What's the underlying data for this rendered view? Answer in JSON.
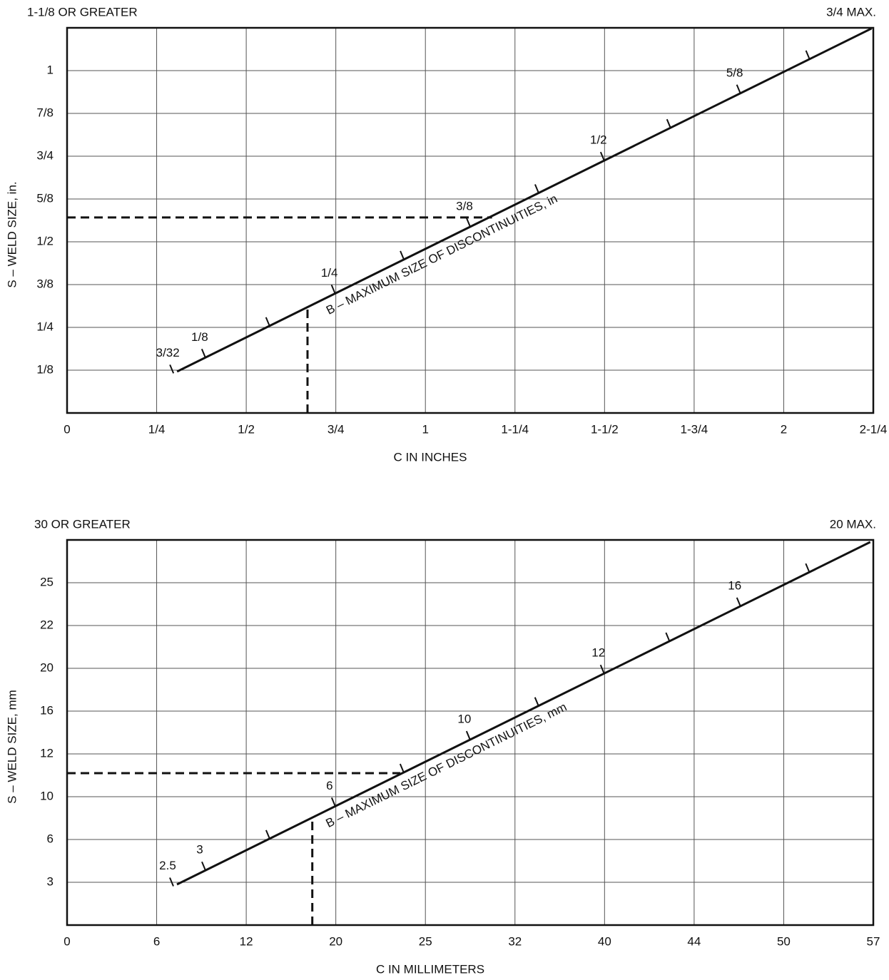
{
  "chart_data": [
    {
      "type": "line",
      "scale": "even-ticks",
      "top_left_note": "1-1/8 OR GREATER",
      "top_right_note": "3/4 MAX.",
      "xlabel": "C IN INCHES",
      "ylabel": "S – WELD SIZE, in.",
      "xlim": [
        0,
        2.25
      ],
      "xticks": [
        0,
        {
          "value": 0.25,
          "label": "1/4"
        },
        {
          "value": 0.5,
          "label": "1/2"
        },
        {
          "value": 0.75,
          "label": "3/4"
        },
        1,
        {
          "value": 1.25,
          "label": "1-1/4"
        },
        {
          "value": 1.5,
          "label": "1-1/2"
        },
        {
          "value": 1.75,
          "label": "1-3/4"
        },
        2,
        {
          "value": 2.25,
          "label": "2-1/4"
        }
      ],
      "ylim": [
        0,
        1.125
      ],
      "yticks": [
        {
          "value": 0.125,
          "label": "1/8"
        },
        {
          "value": 0.25,
          "label": "1/4"
        },
        {
          "value": 0.375,
          "label": "3/8"
        },
        {
          "value": 0.5,
          "label": "1/2"
        },
        {
          "value": 0.625,
          "label": "5/8"
        },
        {
          "value": 0.75,
          "label": "3/4"
        },
        {
          "value": 0.875,
          "label": "7/8"
        },
        1
      ],
      "grid": true,
      "x": [
        0.307,
        2.245
      ],
      "series": [
        {
          "name": "B – MAXIMUM SIZE OF DISCONTINUITIES, in",
          "color": "#111111",
          "values": [
            0.121,
            1.123
          ]
        }
      ],
      "b_ticks": {
        "x": [
          0.297,
          0.386,
          0.565,
          0.748,
          0.94,
          1.125,
          1.316,
          1.499,
          1.684,
          1.879,
          2.072
        ],
        "labels": [
          "3/32",
          "1/8",
          null,
          "1/4",
          null,
          "3/8",
          null,
          "1/2",
          null,
          "5/8",
          null
        ]
      },
      "vertical_guide": {
        "x": 0.671,
        "y": 0.315
      },
      "horizontal_guide": {
        "x": 1.186,
        "y": 0.571
      }
    },
    {
      "type": "line",
      "scale": "even-ticks",
      "top_left_note": "30 OR GREATER",
      "top_right_note": "20 MAX.",
      "xlabel": "C IN MILLIMETERS",
      "ylabel": "S – WELD SIZE, mm",
      "xlim": [
        0,
        57
      ],
      "xticks": [
        0,
        6,
        12,
        20,
        25,
        32,
        40,
        44,
        50,
        57
      ],
      "ylim": [
        0,
        30
      ],
      "yticks": [
        3,
        6,
        10,
        12,
        16,
        20,
        22,
        25
      ],
      "grid": true,
      "x": [
        7.36,
        56.76
      ],
      "series": [
        {
          "name": "B – MAXIMUM SIZE OF DISCONTINUITIES, mm",
          "color": "#111111",
          "values": [
            2.85,
            29.75
          ]
        }
      ],
      "b_ticks": {
        "x": [
          7.12,
          9.27,
          14.09,
          19.95,
          23.79,
          28.49,
          34.1,
          39.96,
          42.9,
          47.1,
          52.0
        ],
        "labels": [
          "2.5",
          "3",
          null,
          "6",
          null,
          "10",
          null,
          "12",
          null,
          "16",
          null
        ]
      },
      "vertical_guide": {
        "x": 17.9,
        "y": 8.1
      },
      "horizontal_guide": {
        "x": 23.6,
        "y": 11.1
      }
    }
  ]
}
